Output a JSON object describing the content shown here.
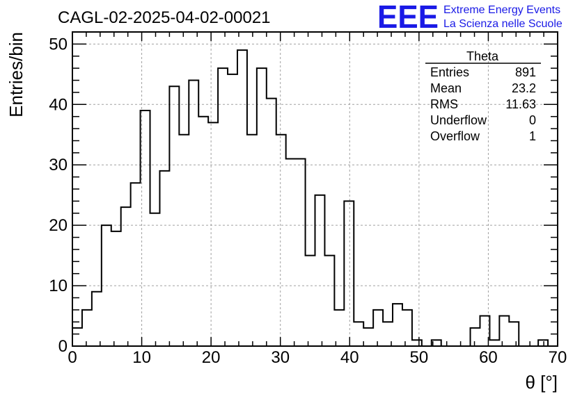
{
  "chart_data": {
    "type": "bar",
    "style": "step-histogram",
    "title": "CAGL-02-2025-04-02-00021",
    "xlabel": "θ [°]",
    "ylabel": "Entries/bin",
    "xlim": [
      0,
      70
    ],
    "ylim": [
      0,
      52
    ],
    "bin_width": 1.4,
    "x_ticks": [
      0,
      10,
      20,
      30,
      40,
      50,
      60,
      70
    ],
    "y_ticks": [
      0,
      10,
      20,
      30,
      40,
      50
    ],
    "grid": true,
    "bin_low_edges": [
      0,
      1.4,
      2.8,
      4.2,
      5.6,
      7.0,
      8.4,
      9.8,
      11.2,
      12.6,
      14.0,
      15.4,
      16.8,
      18.2,
      19.6,
      21.0,
      22.4,
      23.8,
      25.2,
      26.6,
      28.0,
      29.4,
      30.8,
      32.2,
      33.6,
      35.0,
      36.4,
      37.8,
      39.2,
      40.6,
      42.0,
      43.4,
      44.8,
      46.2,
      47.6,
      49.0,
      50.4,
      51.8,
      53.2,
      54.6,
      56.0,
      57.4,
      58.8,
      60.2,
      61.6,
      63.0,
      64.4,
      65.8,
      67.2,
      68.6
    ],
    "values": [
      3,
      6,
      9,
      20,
      19,
      23,
      27,
      39,
      22,
      29,
      43,
      35,
      44,
      38,
      37,
      46,
      45,
      49,
      35,
      46,
      41,
      35,
      31,
      31,
      15,
      25,
      15,
      6,
      24,
      4,
      3,
      6,
      4,
      7,
      6,
      1,
      0,
      1,
      0,
      0,
      0,
      3,
      5,
      1,
      5,
      4,
      0,
      0,
      1,
      0
    ],
    "stats_box": {
      "title": "Theta",
      "rows": [
        {
          "label": "Entries",
          "value": "891"
        },
        {
          "label": "Mean",
          "value": "23.2"
        },
        {
          "label": "RMS",
          "value": "11.63"
        },
        {
          "label": "Underflow",
          "value": "0"
        },
        {
          "label": "Overflow",
          "value": "1"
        }
      ]
    },
    "logo": {
      "text": "EEE",
      "line1": "Extreme Energy Events",
      "line2": "La Scienza nelle Scuole",
      "color": "#1a1ae6"
    },
    "colors": {
      "line": "#000000",
      "grid": "#a0a0a0",
      "logo": "#1a1ae6"
    }
  }
}
